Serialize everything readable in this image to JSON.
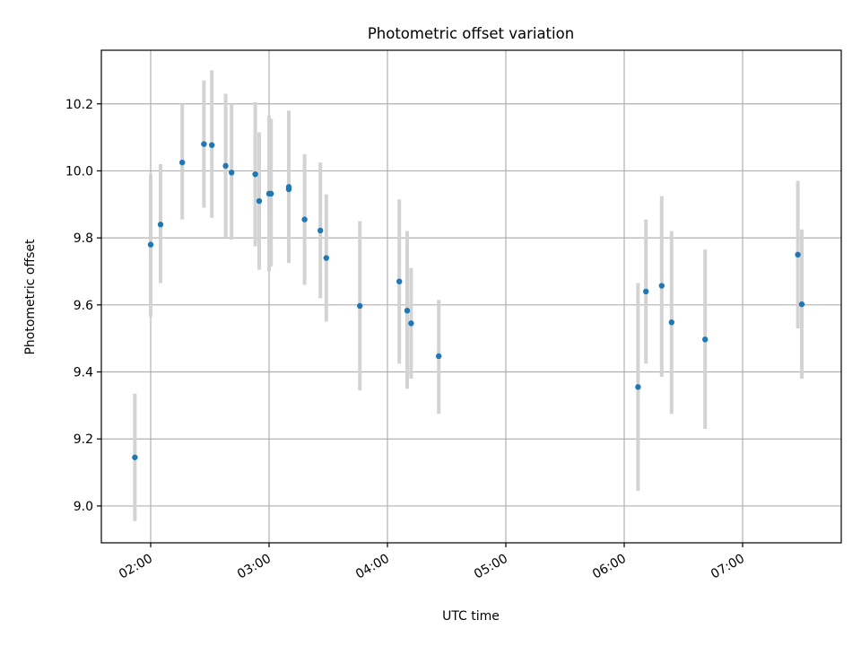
{
  "chart_data": {
    "type": "scatter",
    "title": "Photometric offset variation",
    "xlabel": "UTC time",
    "ylabel": "Photometric offset",
    "x_unit": "UTC time (HH:MM)",
    "xlim": [
      "01:35",
      "07:50"
    ],
    "ylim": [
      8.89,
      10.36
    ],
    "x_ticks": [
      "02:00",
      "03:00",
      "04:00",
      "05:00",
      "06:00",
      "07:00"
    ],
    "y_ticks": [
      "9.0",
      "9.2",
      "9.4",
      "9.6",
      "9.8",
      "10.0",
      "10.2"
    ],
    "grid": true,
    "point_color": "#1f77b4",
    "errorbar_color": "#d3d3d3",
    "points": [
      {
        "t": "01:52",
        "y": 9.145,
        "lo": 8.955,
        "hi": 9.335
      },
      {
        "t": "02:00",
        "y": 9.78,
        "lo": 9.565,
        "hi": 9.99
      },
      {
        "t": "02:05",
        "y": 9.84,
        "lo": 9.665,
        "hi": 10.02
      },
      {
        "t": "02:16",
        "y": 10.025,
        "lo": 9.855,
        "hi": 10.2
      },
      {
        "t": "02:27",
        "y": 10.08,
        "lo": 9.89,
        "hi": 10.27
      },
      {
        "t": "02:31",
        "y": 10.077,
        "lo": 9.86,
        "hi": 10.3
      },
      {
        "t": "02:38",
        "y": 10.015,
        "lo": 9.8,
        "hi": 10.23
      },
      {
        "t": "02:41",
        "y": 9.995,
        "lo": 9.795,
        "hi": 10.2
      },
      {
        "t": "02:53",
        "y": 9.99,
        "lo": 9.775,
        "hi": 10.205
      },
      {
        "t": "02:55",
        "y": 9.91,
        "lo": 9.705,
        "hi": 10.115
      },
      {
        "t": "03:00",
        "y": 9.932,
        "lo": 9.7,
        "hi": 10.165
      },
      {
        "t": "03:01",
        "y": 9.932,
        "lo": 9.715,
        "hi": 10.155
      },
      {
        "t": "03:10",
        "y": 9.945,
        "lo": 9.725,
        "hi": 10.18
      },
      {
        "t": "03:10",
        "y": 9.952,
        "lo": 9.73,
        "hi": 10.17
      },
      {
        "t": "03:18",
        "y": 9.855,
        "lo": 9.66,
        "hi": 10.05
      },
      {
        "t": "03:26",
        "y": 9.822,
        "lo": 9.62,
        "hi": 10.025
      },
      {
        "t": "03:29",
        "y": 9.74,
        "lo": 9.55,
        "hi": 9.93
      },
      {
        "t": "03:46",
        "y": 9.597,
        "lo": 9.345,
        "hi": 9.85
      },
      {
        "t": "04:06",
        "y": 9.67,
        "lo": 9.425,
        "hi": 9.915
      },
      {
        "t": "04:10",
        "y": 9.583,
        "lo": 9.35,
        "hi": 9.82
      },
      {
        "t": "04:12",
        "y": 9.545,
        "lo": 9.38,
        "hi": 9.71
      },
      {
        "t": "04:26",
        "y": 9.447,
        "lo": 9.275,
        "hi": 9.615
      },
      {
        "t": "06:07",
        "y": 9.355,
        "lo": 9.045,
        "hi": 9.665
      },
      {
        "t": "06:11",
        "y": 9.64,
        "lo": 9.425,
        "hi": 9.855
      },
      {
        "t": "06:19",
        "y": 9.657,
        "lo": 9.385,
        "hi": 9.925
      },
      {
        "t": "06:24",
        "y": 9.548,
        "lo": 9.275,
        "hi": 9.82
      },
      {
        "t": "06:41",
        "y": 9.497,
        "lo": 9.23,
        "hi": 9.765
      },
      {
        "t": "07:28",
        "y": 9.75,
        "lo": 9.53,
        "hi": 9.97
      },
      {
        "t": "07:30",
        "y": 9.602,
        "lo": 9.38,
        "hi": 9.825
      }
    ]
  }
}
